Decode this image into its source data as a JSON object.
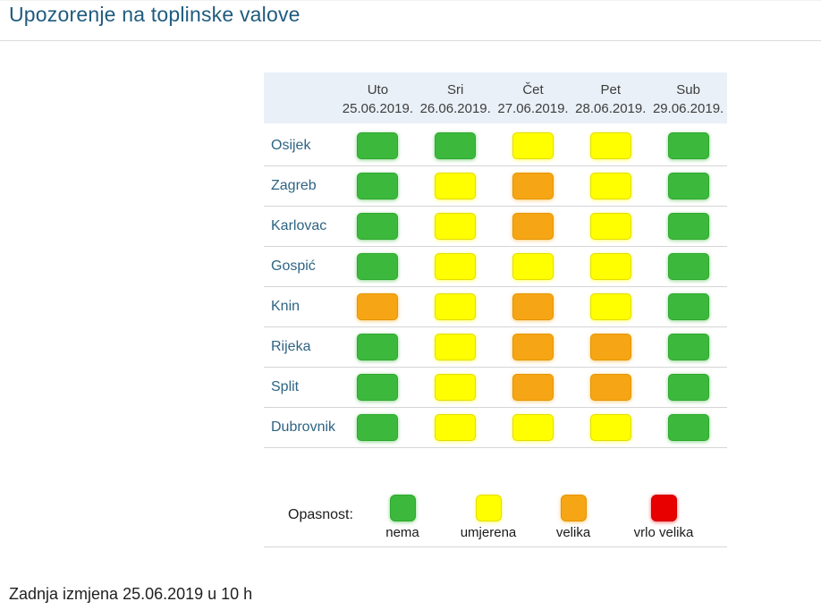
{
  "page": {
    "title": "Upozorenje na toplinske valove",
    "footer": "Zadnja izmjena 25.06.2019 u 10 h"
  },
  "colors": {
    "nema": {
      "fill": "#3CB93C",
      "border": "#2EA82E"
    },
    "umjerena": {
      "fill": "#FFFF00",
      "border": "#E3DC00"
    },
    "velika": {
      "fill": "#F6A614",
      "border": "#E39500"
    },
    "vrlo velika": {
      "fill": "#E80000",
      "border": "#D10000"
    }
  },
  "chart_data": {
    "type": "heatmap",
    "title": "Upozorenje na toplinske valove",
    "columns": [
      {
        "day": "Uto",
        "date": "25.06.2019."
      },
      {
        "day": "Sri",
        "date": "26.06.2019."
      },
      {
        "day": "Čet",
        "date": "27.06.2019."
      },
      {
        "day": "Pet",
        "date": "28.06.2019."
      },
      {
        "day": "Sub",
        "date": "29.06.2019."
      }
    ],
    "rows": [
      {
        "city": "Osijek",
        "levels": [
          "nema",
          "nema",
          "umjerena",
          "umjerena",
          "nema"
        ]
      },
      {
        "city": "Zagreb",
        "levels": [
          "nema",
          "umjerena",
          "velika",
          "umjerena",
          "nema"
        ]
      },
      {
        "city": "Karlovac",
        "levels": [
          "nema",
          "umjerena",
          "velika",
          "umjerena",
          "nema"
        ]
      },
      {
        "city": "Gospić",
        "levels": [
          "nema",
          "umjerena",
          "umjerena",
          "umjerena",
          "nema"
        ]
      },
      {
        "city": "Knin",
        "levels": [
          "velika",
          "umjerena",
          "velika",
          "umjerena",
          "nema"
        ]
      },
      {
        "city": "Rijeka",
        "levels": [
          "nema",
          "umjerena",
          "velika",
          "velika",
          "nema"
        ]
      },
      {
        "city": "Split",
        "levels": [
          "nema",
          "umjerena",
          "velika",
          "velika",
          "nema"
        ]
      },
      {
        "city": "Dubrovnik",
        "levels": [
          "nema",
          "umjerena",
          "umjerena",
          "umjerena",
          "nema"
        ]
      }
    ],
    "legend": {
      "label": "Opasnost:",
      "levels": [
        {
          "name": "nema",
          "color": "#3CB93C"
        },
        {
          "name": "umjerena",
          "color": "#FFFF00"
        },
        {
          "name": "velika",
          "color": "#F6A614"
        },
        {
          "name": "vrlo velika",
          "color": "#E80000"
        }
      ]
    }
  }
}
